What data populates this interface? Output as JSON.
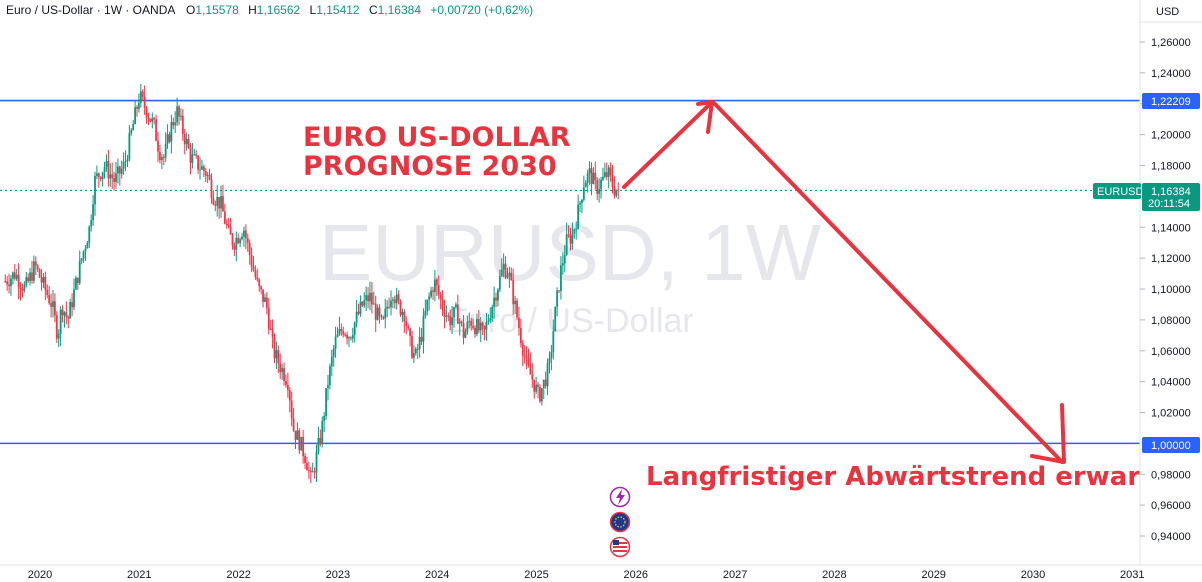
{
  "header": {
    "symbol": "Euro / US-Dollar · 1W · OANDA",
    "o_label": "O",
    "o_value": "1,15578",
    "h_label": "H",
    "h_value": "1,16562",
    "l_label": "L",
    "l_value": "1,15412",
    "c_label": "C",
    "c_value": "1,16384",
    "change": "+0,00720 (+0,62%)"
  },
  "currency": "USD",
  "watermark": {
    "ticker": "EURUSD, 1W",
    "name": "Euro / US-Dollar"
  },
  "annotations": {
    "title_line1": "EURO US-DOLLAR",
    "title_line2": "PROGNOSE 2030",
    "trend_text": "Langfristiger Abwärtstrend erwartet"
  },
  "price_tags": {
    "resistance": "1,22209",
    "support": "1,00000",
    "ticker": "EURUSD",
    "last": "1,16384",
    "countdown": "20:11:54"
  },
  "colors": {
    "up": "#089981",
    "down": "#f23645",
    "level_line": "#2962ff",
    "annotation": "#e8343f",
    "axis_text": "#131722"
  },
  "icons": [
    "lightning-icon",
    "globe-icon",
    "us-flag-icon"
  ],
  "chart_data": {
    "type": "candlestick",
    "title": "EURO US-DOLLAR PROGNOSE 2030",
    "timeframe": "1W",
    "y_ticks": [
      "1,26000",
      "1,24000",
      "1,22000",
      "1,20000",
      "1,18000",
      "1,14000",
      "1,12000",
      "1,10000",
      "1,08000",
      "1,06000",
      "1,04000",
      "1,02000",
      "0,98000",
      "0,96000",
      "0,94000"
    ],
    "y_tick_values": [
      1.26,
      1.24,
      1.22,
      1.2,
      1.18,
      1.14,
      1.12,
      1.1,
      1.08,
      1.06,
      1.04,
      1.02,
      0.98,
      0.96,
      0.94
    ],
    "x_ticks": [
      "2020",
      "2021",
      "2022",
      "2023",
      "2024",
      "2025",
      "2026",
      "2027",
      "2028",
      "2029",
      "2030",
      "2031"
    ],
    "x_tick_values": [
      2020,
      2021,
      2022,
      2023,
      2024,
      2025,
      2026,
      2027,
      2028,
      2029,
      2030,
      2031
    ],
    "ylim": [
      0.925,
      1.275
    ],
    "xlim": [
      2019.63,
      2031.15
    ],
    "levels": [
      {
        "name": "resistance",
        "value": 1.22209
      },
      {
        "name": "support",
        "value": 1.0
      }
    ],
    "last_price": 1.16384,
    "close_path": [
      [
        2019.65,
        1.105
      ],
      [
        2019.75,
        1.11
      ],
      [
        2019.85,
        1.1
      ],
      [
        2019.95,
        1.115
      ],
      [
        2020.05,
        1.1
      ],
      [
        2020.12,
        1.09
      ],
      [
        2020.18,
        1.07
      ],
      [
        2020.22,
        1.09
      ],
      [
        2020.28,
        1.08
      ],
      [
        2020.35,
        1.1
      ],
      [
        2020.42,
        1.12
      ],
      [
        2020.5,
        1.14
      ],
      [
        2020.55,
        1.17
      ],
      [
        2020.65,
        1.18
      ],
      [
        2020.75,
        1.17
      ],
      [
        2020.85,
        1.18
      ],
      [
        2020.95,
        1.21
      ],
      [
        2021.0,
        1.225
      ],
      [
        2021.08,
        1.215
      ],
      [
        2021.15,
        1.205
      ],
      [
        2021.2,
        1.19
      ],
      [
        2021.25,
        1.185
      ],
      [
        2021.32,
        1.205
      ],
      [
        2021.38,
        1.215
      ],
      [
        2021.45,
        1.2
      ],
      [
        2021.52,
        1.185
      ],
      [
        2021.6,
        1.18
      ],
      [
        2021.68,
        1.175
      ],
      [
        2021.75,
        1.16
      ],
      [
        2021.82,
        1.155
      ],
      [
        2021.9,
        1.135
      ],
      [
        2021.95,
        1.13
      ],
      [
        2022.0,
        1.135
      ],
      [
        2022.05,
        1.14
      ],
      [
        2022.12,
        1.12
      ],
      [
        2022.2,
        1.1
      ],
      [
        2022.28,
        1.09
      ],
      [
        2022.35,
        1.06
      ],
      [
        2022.42,
        1.05
      ],
      [
        2022.5,
        1.04
      ],
      [
        2022.55,
        1.01
      ],
      [
        2022.62,
        1.0
      ],
      [
        2022.68,
        0.99
      ],
      [
        2022.73,
        0.975
      ],
      [
        2022.78,
        0.99
      ],
      [
        2022.84,
        1.01
      ],
      [
        2022.9,
        1.04
      ],
      [
        2022.97,
        1.065
      ],
      [
        2023.05,
        1.075
      ],
      [
        2023.12,
        1.07
      ],
      [
        2023.18,
        1.08
      ],
      [
        2023.25,
        1.09
      ],
      [
        2023.32,
        1.095
      ],
      [
        2023.38,
        1.085
      ],
      [
        2023.45,
        1.075
      ],
      [
        2023.5,
        1.09
      ],
      [
        2023.55,
        1.1
      ],
      [
        2023.6,
        1.09
      ],
      [
        2023.67,
        1.085
      ],
      [
        2023.72,
        1.065
      ],
      [
        2023.78,
        1.055
      ],
      [
        2023.84,
        1.07
      ],
      [
        2023.9,
        1.09
      ],
      [
        2023.97,
        1.105
      ],
      [
        2024.05,
        1.09
      ],
      [
        2024.12,
        1.08
      ],
      [
        2024.2,
        1.085
      ],
      [
        2024.27,
        1.07
      ],
      [
        2024.33,
        1.08
      ],
      [
        2024.4,
        1.075
      ],
      [
        2024.47,
        1.07
      ],
      [
        2024.53,
        1.085
      ],
      [
        2024.6,
        1.1
      ],
      [
        2024.67,
        1.115
      ],
      [
        2024.72,
        1.11
      ],
      [
        2024.78,
        1.09
      ],
      [
        2024.84,
        1.07
      ],
      [
        2024.9,
        1.05
      ],
      [
        2024.97,
        1.04
      ],
      [
        2025.02,
        1.03
      ],
      [
        2025.08,
        1.04
      ],
      [
        2025.13,
        1.05
      ],
      [
        2025.18,
        1.08
      ],
      [
        2025.24,
        1.11
      ],
      [
        2025.3,
        1.13
      ],
      [
        2025.36,
        1.135
      ],
      [
        2025.42,
        1.15
      ],
      [
        2025.48,
        1.17
      ],
      [
        2025.54,
        1.175
      ],
      [
        2025.6,
        1.165
      ],
      [
        2025.66,
        1.17
      ],
      [
        2025.72,
        1.175
      ],
      [
        2025.78,
        1.165
      ],
      [
        2025.84,
        1.16384
      ]
    ]
  }
}
